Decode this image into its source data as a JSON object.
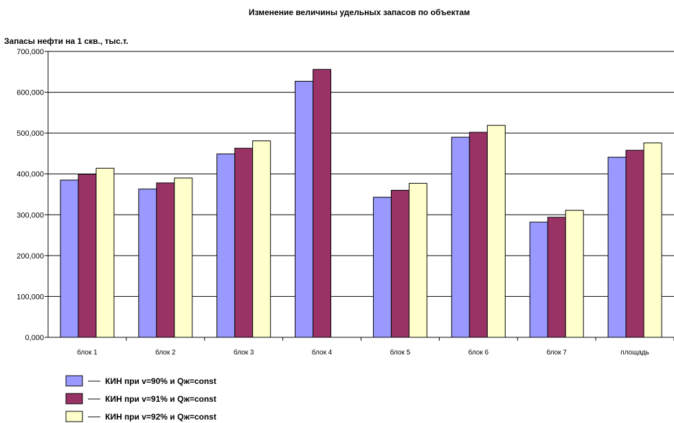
{
  "chart_data": {
    "type": "bar",
    "title": "Изменение величины удельных запасов по объектам",
    "ylabel": "Запасы нефти на 1 скв., тыс.т.",
    "xlabel": "",
    "ylim": [
      0,
      700
    ],
    "yticks": [
      0,
      100,
      200,
      300,
      400,
      500,
      600,
      700
    ],
    "ytick_labels": [
      "0,000",
      "100,000",
      "200,000",
      "300,000",
      "400,000",
      "500,000",
      "600,000",
      "700,000"
    ],
    "grid": true,
    "legend_position": "bottom-left",
    "categories": [
      "блок 1",
      "блок 2",
      "блок 3",
      "блок 4",
      "блок 5",
      "блок 6",
      "блок 7",
      "площадь"
    ],
    "series": [
      {
        "name": "КИН при v=90% и Qж=const",
        "color": "#9999ff",
        "values": [
          385,
          363,
          449,
          627,
          343,
          490,
          282,
          441
        ]
      },
      {
        "name": "КИН при v=91% и Qж=const",
        "color": "#993366",
        "values": [
          399,
          378,
          463,
          656,
          360,
          502,
          294,
          458
        ]
      },
      {
        "name": "КИН при v=92% и Qж=const",
        "color": "#ffffcc",
        "values": [
          414,
          390,
          481,
          null,
          377,
          519,
          311,
          476
        ]
      }
    ]
  }
}
